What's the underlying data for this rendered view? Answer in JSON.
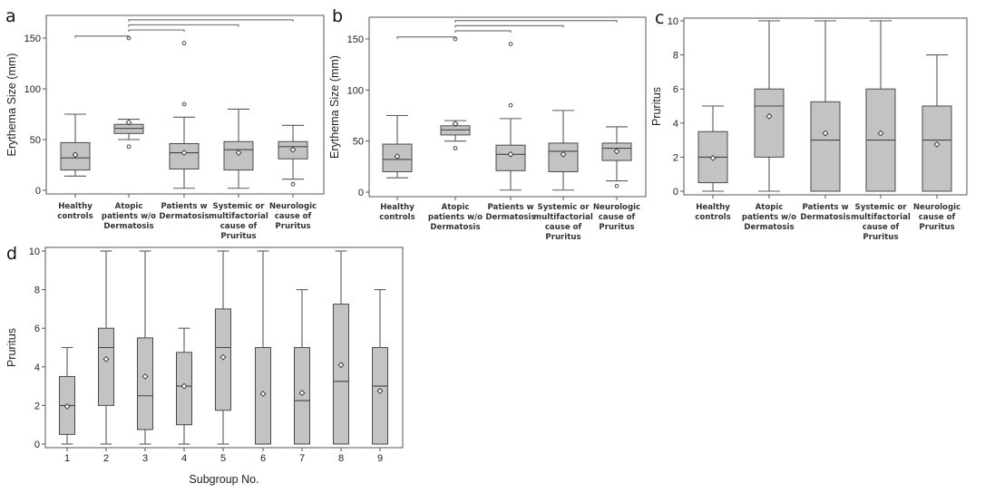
{
  "chart_data": [
    {
      "panel": "a",
      "type": "box",
      "ylabel": "Erythema Size (mm)",
      "xlabel": "",
      "ylim": [
        -5,
        170
      ],
      "yticks": [
        0,
        50,
        100,
        150
      ],
      "categories": [
        [
          "Healthy",
          "controls"
        ],
        [
          "Atopic",
          "patients w/o",
          "Dermatosis"
        ],
        [
          "Patients w",
          "Dermatosis"
        ],
        [
          "Systemic or",
          "multifactorial",
          "cause of",
          "Pruritus"
        ],
        [
          "Neurologic",
          "cause of",
          "Pruritus"
        ]
      ],
      "boxes": [
        {
          "whisker_low": 14,
          "q1": 20,
          "median": 32,
          "q3": 47,
          "whisker_high": 75,
          "mean": 35,
          "outliers": []
        },
        {
          "whisker_low": 50,
          "q1": 56,
          "median": 61,
          "q3": 65,
          "whisker_high": 70,
          "mean": 67,
          "outliers": [
            43,
            150
          ]
        },
        {
          "whisker_low": 2,
          "q1": 21,
          "median": 37,
          "q3": 46,
          "whisker_high": 72,
          "mean": 37,
          "outliers": [
            85,
            145
          ]
        },
        {
          "whisker_low": 2,
          "q1": 20,
          "median": 40,
          "q3": 48,
          "whisker_high": 80,
          "mean": 37,
          "outliers": []
        },
        {
          "whisker_low": 11,
          "q1": 31,
          "median": 43,
          "q3": 48,
          "whisker_high": 64,
          "mean": 40,
          "outliers": [
            6
          ]
        }
      ],
      "brackets": [
        {
          "from": 0,
          "to": 1,
          "level": 152
        },
        {
          "from": 1,
          "to": 2,
          "level": 158
        },
        {
          "from": 1,
          "to": 3,
          "level": 163
        },
        {
          "from": 1,
          "to": 4,
          "level": 168
        }
      ]
    },
    {
      "panel": "b",
      "type": "box",
      "ylabel": "Erythema Size (mm)",
      "xlabel": "",
      "ylim": [
        -5,
        170
      ],
      "yticks": [
        0,
        50,
        100,
        150
      ],
      "categories": [
        [
          "Healthy",
          "controls"
        ],
        [
          "Atopic",
          "patients w/o",
          "Dermatosis"
        ],
        [
          "Patients w",
          "Dermatosis"
        ],
        [
          "Systemic or",
          "multifactorial",
          "cause of",
          "Pruritus"
        ],
        [
          "Neurologic",
          "cause of",
          "Pruritus"
        ]
      ],
      "boxes": [
        {
          "whisker_low": 14,
          "q1": 20,
          "median": 32,
          "q3": 47,
          "whisker_high": 75,
          "mean": 35,
          "outliers": []
        },
        {
          "whisker_low": 50,
          "q1": 56,
          "median": 61,
          "q3": 65,
          "whisker_high": 70,
          "mean": 67,
          "outliers": [
            43,
            150
          ]
        },
        {
          "whisker_low": 2,
          "q1": 21,
          "median": 37,
          "q3": 46,
          "whisker_high": 72,
          "mean": 37,
          "outliers": [
            85,
            145
          ]
        },
        {
          "whisker_low": 2,
          "q1": 20,
          "median": 40,
          "q3": 48,
          "whisker_high": 80,
          "mean": 37,
          "outliers": []
        },
        {
          "whisker_low": 11,
          "q1": 31,
          "median": 43,
          "q3": 48,
          "whisker_high": 64,
          "mean": 40,
          "outliers": [
            6
          ]
        }
      ],
      "brackets": [
        {
          "from": 0,
          "to": 1,
          "level": 152
        },
        {
          "from": 1,
          "to": 2,
          "level": 158
        },
        {
          "from": 1,
          "to": 3,
          "level": 163
        },
        {
          "from": 1,
          "to": 4,
          "level": 168
        }
      ]
    },
    {
      "panel": "c",
      "type": "box",
      "ylabel": "Pruritus",
      "xlabel": "",
      "ylim": [
        -0.2,
        10.2
      ],
      "yticks": [
        0,
        2,
        4,
        6,
        8,
        10
      ],
      "categories": [
        [
          "Healthy",
          "controls"
        ],
        [
          "Atopic",
          "patients w/o",
          "Dermatosis"
        ],
        [
          "Patients w",
          "Dermatosis"
        ],
        [
          "Systemic or",
          "multifactorial",
          "cause of",
          "Pruritus"
        ],
        [
          "Neurologic",
          "cause of",
          "Pruritus"
        ]
      ],
      "boxes": [
        {
          "whisker_low": 0,
          "q1": 0.5,
          "median": 2,
          "q3": 3.5,
          "whisker_high": 5,
          "mean": 1.95,
          "outliers": []
        },
        {
          "whisker_low": 0,
          "q1": 2,
          "median": 5,
          "q3": 6,
          "whisker_high": 10,
          "mean": 4.4,
          "outliers": []
        },
        {
          "whisker_low": 0,
          "q1": 0,
          "median": 3,
          "q3": 5.25,
          "whisker_high": 10,
          "mean": 3.4,
          "outliers": []
        },
        {
          "whisker_low": 0,
          "q1": 0,
          "median": 3,
          "q3": 6,
          "whisker_high": 10,
          "mean": 3.4,
          "outliers": []
        },
        {
          "whisker_low": 0,
          "q1": 0,
          "median": 3,
          "q3": 5,
          "whisker_high": 8,
          "mean": 2.75,
          "outliers": []
        }
      ],
      "brackets": []
    },
    {
      "panel": "d",
      "type": "box",
      "ylabel": "Pruritus",
      "xlabel": "Subgroup No.",
      "ylim": [
        -0.2,
        10.4
      ],
      "yticks": [
        0,
        2,
        4,
        6,
        8,
        10
      ],
      "categories": [
        [
          "1"
        ],
        [
          "2"
        ],
        [
          "3"
        ],
        [
          "4"
        ],
        [
          "5"
        ],
        [
          "6"
        ],
        [
          "7"
        ],
        [
          "8"
        ],
        [
          "9"
        ]
      ],
      "boxes": [
        {
          "whisker_low": 0,
          "q1": 0.5,
          "median": 2,
          "q3": 3.5,
          "whisker_high": 5,
          "mean": 1.95,
          "outliers": []
        },
        {
          "whisker_low": 0,
          "q1": 2,
          "median": 5,
          "q3": 6,
          "whisker_high": 10,
          "mean": 4.4,
          "outliers": []
        },
        {
          "whisker_low": 0,
          "q1": 0.75,
          "median": 2.5,
          "q3": 5.5,
          "whisker_high": 10,
          "mean": 3.5,
          "outliers": []
        },
        {
          "whisker_low": 0,
          "q1": 1,
          "median": 3,
          "q3": 4.75,
          "whisker_high": 6,
          "mean": 3,
          "outliers": []
        },
        {
          "whisker_low": 0,
          "q1": 1.75,
          "median": 5,
          "q3": 7,
          "whisker_high": 10,
          "mean": 4.5,
          "outliers": []
        },
        {
          "whisker_low": 0,
          "q1": 0,
          "median": 0,
          "q3": 5,
          "whisker_high": 10,
          "mean": 2.6,
          "outliers": []
        },
        {
          "whisker_low": 0,
          "q1": 0,
          "median": 2.25,
          "q3": 5,
          "whisker_high": 8,
          "mean": 2.65,
          "outliers": []
        },
        {
          "whisker_low": 0,
          "q1": 0,
          "median": 3.25,
          "q3": 7.25,
          "whisker_high": 10,
          "mean": 4.1,
          "outliers": []
        },
        {
          "whisker_low": 0,
          "q1": 0,
          "median": 3,
          "q3": 5,
          "whisker_high": 8,
          "mean": 2.75,
          "outliers": []
        }
      ],
      "brackets": []
    }
  ]
}
